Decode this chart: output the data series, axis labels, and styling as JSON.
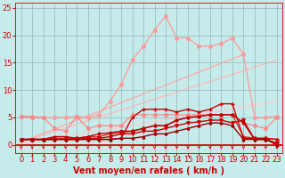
{
  "background_color": "#c5eceb",
  "grid_color": "#9bbfbf",
  "xlabel": "Vent moyen/en rafales ( km/h )",
  "xlim": [
    -0.5,
    23.5
  ],
  "ylim": [
    -1.5,
    26
  ],
  "yticks": [
    0,
    5,
    10,
    15,
    20,
    25
  ],
  "xticks": [
    0,
    1,
    2,
    3,
    4,
    5,
    6,
    7,
    8,
    9,
    10,
    11,
    12,
    13,
    14,
    15,
    16,
    17,
    18,
    19,
    20,
    21,
    22,
    23
  ],
  "series": [
    {
      "x": [
        0,
        1,
        2,
        3,
        4,
        5,
        6,
        7,
        8,
        9,
        10,
        11,
        12,
        13,
        14,
        15,
        16,
        17,
        18,
        19,
        20,
        21,
        22,
        23
      ],
      "y": [
        5.2,
        5.2,
        5.0,
        5.0,
        5.0,
        5.2,
        5.0,
        5.5,
        8.0,
        11.0,
        15.5,
        18.0,
        21.0,
        23.5,
        19.5,
        19.5,
        18.0,
        18.0,
        18.5,
        19.5,
        16.5,
        5.0,
        5.0,
        5.2
      ],
      "color": "#ff9999",
      "lw": 0.9,
      "marker": "o",
      "ms": 2.5,
      "zorder": 2
    },
    {
      "x": [
        0,
        20
      ],
      "y": [
        0.5,
        16.5
      ],
      "color": "#ffaaaa",
      "lw": 1.0,
      "marker": null,
      "ms": 0,
      "zorder": 1
    },
    {
      "x": [
        0,
        23
      ],
      "y": [
        0.5,
        15.5
      ],
      "color": "#ffbbbb",
      "lw": 1.0,
      "marker": null,
      "ms": 0,
      "zorder": 1
    },
    {
      "x": [
        0,
        23
      ],
      "y": [
        0.2,
        8.0
      ],
      "color": "#ffcccc",
      "lw": 1.0,
      "marker": null,
      "ms": 0,
      "zorder": 1
    },
    {
      "x": [
        0,
        1,
        2,
        3,
        4,
        5,
        6,
        7,
        8,
        9,
        10,
        11,
        12,
        13,
        14,
        15,
        16,
        17,
        18,
        19,
        20,
        21,
        22,
        23
      ],
      "y": [
        5.2,
        5.0,
        5.0,
        3.0,
        2.5,
        5.2,
        3.0,
        3.5,
        3.5,
        3.5,
        5.5,
        5.5,
        5.5,
        5.5,
        5.5,
        5.5,
        5.5,
        5.5,
        5.5,
        5.5,
        4.0,
        3.5,
        3.0,
        5.0
      ],
      "color": "#ff8888",
      "lw": 0.9,
      "marker": "o",
      "ms": 2.5,
      "zorder": 3
    },
    {
      "x": [
        0,
        1,
        2,
        3,
        4,
        5,
        6,
        7,
        8,
        9,
        10,
        11,
        12,
        13,
        14,
        15,
        16,
        17,
        18,
        19,
        20,
        21,
        22,
        23
      ],
      "y": [
        1.0,
        1.0,
        1.0,
        1.0,
        1.0,
        1.0,
        1.0,
        1.0,
        1.0,
        1.2,
        5.0,
        6.5,
        6.5,
        6.5,
        6.0,
        6.5,
        6.0,
        6.5,
        7.5,
        7.5,
        1.2,
        1.2,
        1.2,
        1.0
      ],
      "color": "#cc0000",
      "lw": 1.0,
      "marker": "+",
      "ms": 3.5,
      "zorder": 6
    },
    {
      "x": [
        0,
        1,
        2,
        3,
        4,
        5,
        6,
        7,
        8,
        9,
        10,
        11,
        12,
        13,
        14,
        15,
        16,
        17,
        18,
        19,
        20,
        21,
        22,
        23
      ],
      "y": [
        1.0,
        1.0,
        1.0,
        1.0,
        1.0,
        1.0,
        1.2,
        1.2,
        1.5,
        2.0,
        2.0,
        2.5,
        2.5,
        3.0,
        3.5,
        4.0,
        4.2,
        4.5,
        4.5,
        4.0,
        4.5,
        1.0,
        1.0,
        0.3
      ],
      "color": "#cc0000",
      "lw": 1.0,
      "marker": "v",
      "ms": 2.5,
      "zorder": 6
    },
    {
      "x": [
        0,
        1,
        2,
        3,
        4,
        5,
        6,
        7,
        8,
        9,
        10,
        11,
        12,
        13,
        14,
        15,
        16,
        17,
        18,
        19,
        20,
        21,
        22,
        23
      ],
      "y": [
        1.0,
        1.0,
        1.0,
        1.2,
        1.2,
        1.2,
        1.5,
        1.5,
        2.0,
        2.2,
        2.5,
        3.0,
        3.5,
        3.5,
        4.5,
        5.0,
        5.2,
        5.5,
        5.5,
        5.5,
        1.5,
        1.2,
        1.2,
        1.0
      ],
      "color": "#dd3333",
      "lw": 1.0,
      "marker": "D",
      "ms": 2,
      "zorder": 5
    },
    {
      "x": [
        0,
        1,
        2,
        3,
        4,
        5,
        6,
        7,
        8,
        9,
        10,
        11,
        12,
        13,
        14,
        15,
        16,
        17,
        18,
        19,
        20,
        21,
        22,
        23
      ],
      "y": [
        1.0,
        1.0,
        1.0,
        1.5,
        1.5,
        1.2,
        1.5,
        2.0,
        2.2,
        2.5,
        2.5,
        3.0,
        3.5,
        3.5,
        4.5,
        5.0,
        5.2,
        5.5,
        5.5,
        5.5,
        4.0,
        1.0,
        1.0,
        0.3
      ],
      "color": "#bb0000",
      "lw": 1.0,
      "marker": "s",
      "ms": 2,
      "zorder": 5
    },
    {
      "x": [
        0,
        1,
        2,
        3,
        4,
        5,
        6,
        7,
        8,
        9,
        10,
        11,
        12,
        13,
        14,
        15,
        16,
        17,
        18,
        19,
        20,
        21,
        22,
        23
      ],
      "y": [
        1.0,
        1.0,
        1.0,
        1.0,
        1.0,
        1.0,
        1.0,
        1.0,
        1.0,
        1.2,
        1.2,
        1.5,
        2.0,
        2.0,
        2.5,
        3.0,
        3.5,
        4.0,
        4.0,
        3.5,
        1.0,
        1.0,
        1.0,
        0.0
      ],
      "color": "#990000",
      "lw": 1.0,
      "marker": "^",
      "ms": 2,
      "zorder": 6
    }
  ],
  "arrow_color": "#cc0000",
  "xlabel_color": "#cc0000",
  "tick_color": "#cc0000",
  "label_fontsize": 7,
  "tick_fontsize": 6
}
